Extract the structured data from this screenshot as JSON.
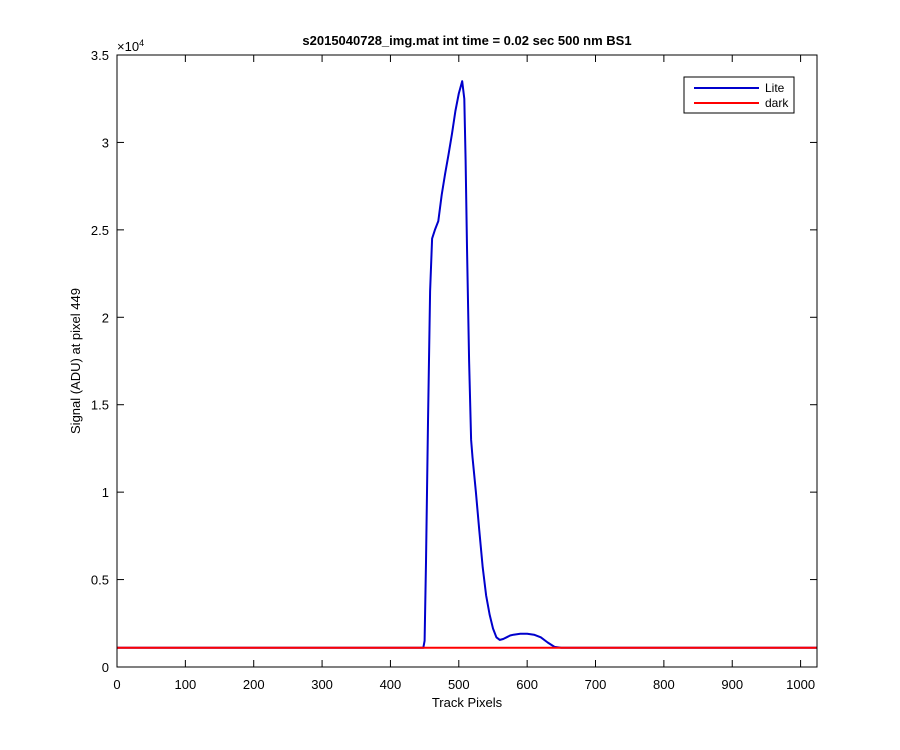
{
  "chart_data": {
    "type": "line",
    "title": "s2015040728_img.mat int time = 0.02 sec  500 nm BS1",
    "xlabel": "Track Pixels",
    "ylabel": "Signal (ADU) at pixel 449",
    "xlim": [
      0,
      1024
    ],
    "ylim": [
      0,
      35000
    ],
    "y_multiplier": "×10",
    "y_multiplier_exp": "4",
    "x_ticks": [
      0,
      100,
      200,
      300,
      400,
      500,
      600,
      700,
      800,
      900,
      1000
    ],
    "x_tick_labels": [
      "0",
      "100",
      "200",
      "300",
      "400",
      "500",
      "600",
      "700",
      "800",
      "900",
      "1000"
    ],
    "y_ticks": [
      0,
      5000,
      10000,
      15000,
      20000,
      25000,
      30000,
      35000
    ],
    "y_tick_labels": [
      "0",
      "0.5",
      "1",
      "1.5",
      "2",
      "2.5",
      "3",
      "3.5"
    ],
    "grid": false,
    "legend_position": "top-right",
    "series": [
      {
        "name": "Lite",
        "color": "#0000cc",
        "x": [
          0,
          100,
          200,
          300,
          400,
          448,
          450,
          452,
          455,
          458,
          461,
          465,
          470,
          475,
          480,
          485,
          490,
          495,
          500,
          505,
          508,
          510,
          512,
          515,
          518,
          520,
          525,
          530,
          535,
          540,
          545,
          550,
          555,
          560,
          565,
          570,
          575,
          580,
          590,
          600,
          610,
          620,
          630,
          640,
          650,
          700,
          800,
          900,
          1024
        ],
        "values": [
          1100,
          1100,
          1100,
          1100,
          1100,
          1100,
          1500,
          6000,
          14000,
          21500,
          24500,
          25000,
          25500,
          27000,
          28200,
          29300,
          30500,
          31800,
          32800,
          33500,
          32500,
          29000,
          24000,
          17500,
          13000,
          12000,
          10000,
          7800,
          5700,
          4100,
          3000,
          2200,
          1700,
          1550,
          1600,
          1700,
          1800,
          1850,
          1900,
          1900,
          1850,
          1700,
          1400,
          1150,
          1100,
          1100,
          1100,
          1100,
          1100
        ]
      },
      {
        "name": "dark",
        "color": "#ff0000",
        "x": [
          0,
          1024
        ],
        "values": [
          1100,
          1100
        ]
      }
    ]
  }
}
